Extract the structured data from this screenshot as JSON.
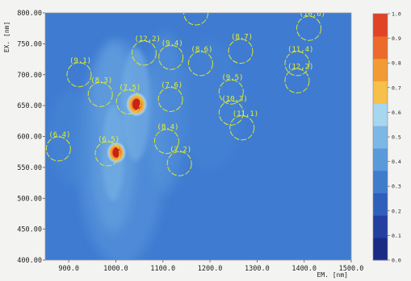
{
  "chart_data": {
    "type": "heatmap",
    "title": "",
    "xlabel": "EM. [nm]",
    "ylabel": "EX. [nm]",
    "xlim": [
      850,
      1500
    ],
    "ylim": [
      400,
      800
    ],
    "x_ticks": [
      "900.0",
      "1000.0",
      "1100.0",
      "1200.0",
      "1300.0",
      "1400.0",
      "1500.0"
    ],
    "x_tick_values": [
      900,
      1000,
      1100,
      1200,
      1300,
      1400,
      1500
    ],
    "y_ticks": [
      "400.00",
      "450.00",
      "500.00",
      "550.00",
      "600.00",
      "650.00",
      "700.00",
      "750.00",
      "800.00"
    ],
    "y_tick_values": [
      400,
      450,
      500,
      550,
      600,
      650,
      700,
      750,
      800
    ],
    "colorbar": {
      "range": [
        0,
        1
      ],
      "ticks": [
        "0.0",
        "0.1",
        "0.2",
        "0.3",
        "0.4",
        "0.5",
        "0.6",
        "0.7",
        "0.8",
        "0.9",
        "1.0"
      ],
      "tick_values": [
        0,
        0.1,
        0.2,
        0.3,
        0.4,
        0.5,
        0.6,
        0.7,
        0.8,
        0.9,
        1.0
      ],
      "colors": [
        "#1a2b86",
        "#233fa0",
        "#2f5fbb",
        "#3f7ccc",
        "#5a99da",
        "#7db7e6",
        "#a7d6ef",
        "#f6c04a",
        "#f29a33",
        "#ec6a2a",
        "#e04326"
      ]
    },
    "hotspots": [
      {
        "em": 1044,
        "ex": 652,
        "intensity": 1.0
      },
      {
        "em": 1001,
        "ex": 574,
        "intensity": 0.9
      }
    ],
    "chirality_markers": [
      {
        "label": "(12,2)",
        "em": 1170,
        "ex": 800
      },
      {
        "label": "(10,6)",
        "em": 1410,
        "ex": 775
      },
      {
        "label": "(12,2)",
        "em": 1060,
        "ex": 735
      },
      {
        "label": "(9,4)",
        "em": 1117,
        "ex": 728
      },
      {
        "label": "(8,7)",
        "em": 1265,
        "ex": 738
      },
      {
        "label": "(11,4)",
        "em": 1385,
        "ex": 718
      },
      {
        "label": "(8,6)",
        "em": 1180,
        "ex": 718
      },
      {
        "label": "(12,2)",
        "em": 1385,
        "ex": 690
      },
      {
        "label": "(9,1)",
        "em": 922,
        "ex": 700
      },
      {
        "label": "(8,3)",
        "em": 967,
        "ex": 668
      },
      {
        "label": "(9,5)",
        "em": 1245,
        "ex": 672
      },
      {
        "label": "(7,6)",
        "em": 1116,
        "ex": 660
      },
      {
        "label": "(7,5)",
        "em": 1027,
        "ex": 656
      },
      {
        "label": "(10,3)",
        "em": 1245,
        "ex": 638
      },
      {
        "label": "(11,1)",
        "em": 1268,
        "ex": 614
      },
      {
        "label": "(6,4)",
        "em": 878,
        "ex": 580
      },
      {
        "label": "(8,4)",
        "em": 1108,
        "ex": 592
      },
      {
        "label": "(6,5)",
        "em": 982,
        "ex": 572
      },
      {
        "label": "(7,2)",
        "em": 1135,
        "ex": 556
      }
    ]
  }
}
